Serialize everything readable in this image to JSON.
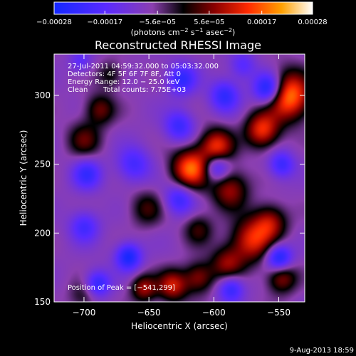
{
  "chart_data": {
    "type": "heatmap",
    "title": "Reconstructed RHESSI Image",
    "xlabel": "Heliocentric X (arcsec)",
    "ylabel": "Heliocentric Y (arcsec)",
    "xlim": [
      -723,
      -530
    ],
    "ylim": [
      150,
      330
    ],
    "x_ticks": [
      {
        "value": -700,
        "label": "−700"
      },
      {
        "value": -650,
        "label": "−650"
      },
      {
        "value": -600,
        "label": "−600"
      },
      {
        "value": -550,
        "label": "−550"
      }
    ],
    "y_ticks": [
      {
        "value": 150,
        "label": "150"
      },
      {
        "value": 200,
        "label": "200"
      },
      {
        "value": 250,
        "label": "250"
      },
      {
        "value": 300,
        "label": "300"
      }
    ],
    "colorbar": {
      "range": [
        -0.00028,
        0.00028
      ],
      "tick_values": [
        -0.00028,
        -0.00017,
        -5.6e-05,
        5.6e-05,
        0.00017,
        0.00028
      ],
      "tick_labels": [
        "−0.00028",
        "−0.00017",
        "−5.6e−05",
        "5.6e−05",
        "0.00017",
        "0.00028"
      ],
      "units_label": "(photons cm",
      "units_exp1": "−2",
      "units_mid": " s",
      "units_exp2": "−1",
      "units_mid2": " asec",
      "units_exp3": "−2",
      "units_close": ")"
    },
    "annotations": {
      "time_range": "27-Jul-2011 04:59:32.000 to 05:03:32.000",
      "detectors": "Detectors: 4F 5F 6F 7F 8F, Att 0",
      "energy_range": "Energy Range: 12.0 − 25.0 keV",
      "clean_label": "Clean",
      "total_counts": "Total counts: 7.75E+03",
      "peak_position": "Position of Peak = [−541,299]"
    },
    "sources": [
      {
        "x": -543,
        "y": 300,
        "sigma": 12,
        "amp": 1.0
      },
      {
        "x": -563,
        "y": 275,
        "sigma": 9,
        "amp": 0.75
      },
      {
        "x": -618,
        "y": 247,
        "sigma": 10,
        "amp": 0.9
      },
      {
        "x": -598,
        "y": 263,
        "sigma": 9,
        "amp": 0.75
      },
      {
        "x": -588,
        "y": 232,
        "sigma": 10,
        "amp": 0.55
      },
      {
        "x": -557,
        "y": 208,
        "sigma": 9,
        "amp": 0.55
      },
      {
        "x": -571,
        "y": 195,
        "sigma": 11,
        "amp": 0.7
      },
      {
        "x": -590,
        "y": 178,
        "sigma": 9,
        "amp": 0.5
      },
      {
        "x": -612,
        "y": 168,
        "sigma": 8,
        "amp": 0.5
      },
      {
        "x": -632,
        "y": 162,
        "sigma": 8,
        "amp": 0.65
      },
      {
        "x": -654,
        "y": 160,
        "sigma": 7,
        "amp": 0.55
      },
      {
        "x": -548,
        "y": 168,
        "sigma": 8,
        "amp": 0.55
      },
      {
        "x": -688,
        "y": 290,
        "sigma": 8,
        "amp": 0.45
      },
      {
        "x": -700,
        "y": 268,
        "sigma": 9,
        "amp": 0.4
      },
      {
        "x": -652,
        "y": 218,
        "sigma": 9,
        "amp": 0.35
      },
      {
        "x": -612,
        "y": 203,
        "sigma": 8,
        "amp": 0.35
      },
      {
        "x": -700,
        "y": 155,
        "sigma": 8,
        "amp": 0.3
      },
      {
        "x": -680,
        "y": 315,
        "sigma": 7,
        "amp": 0.3
      },
      {
        "x": -625,
        "y": 312,
        "sigma": 8,
        "amp": -0.55
      },
      {
        "x": -592,
        "y": 300,
        "sigma": 8,
        "amp": -0.55
      },
      {
        "x": -558,
        "y": 305,
        "sigma": 8,
        "amp": -0.9
      },
      {
        "x": -627,
        "y": 278,
        "sigma": 8,
        "amp": -0.5
      },
      {
        "x": -598,
        "y": 248,
        "sigma": 7,
        "amp": -0.6
      },
      {
        "x": -627,
        "y": 225,
        "sigma": 8,
        "amp": -0.5
      },
      {
        "x": -698,
        "y": 243,
        "sigma": 8,
        "amp": -0.5
      },
      {
        "x": -662,
        "y": 250,
        "sigma": 9,
        "amp": -0.45
      },
      {
        "x": -548,
        "y": 250,
        "sigma": 7,
        "amp": -0.5
      },
      {
        "x": -550,
        "y": 182,
        "sigma": 7,
        "amp": -0.75
      },
      {
        "x": -587,
        "y": 160,
        "sigma": 7,
        "amp": -0.55
      },
      {
        "x": -666,
        "y": 183,
        "sigma": 7,
        "amp": -0.7
      },
      {
        "x": -690,
        "y": 163,
        "sigma": 7,
        "amp": -0.6
      },
      {
        "x": -703,
        "y": 325,
        "sigma": 6,
        "amp": -0.3
      },
      {
        "x": -700,
        "y": 205,
        "sigma": 8,
        "amp": -0.45
      },
      {
        "x": -578,
        "y": 322,
        "sigma": 7,
        "amp": -0.35
      }
    ]
  },
  "footer": {
    "timestamp": "9-Aug-2013 18:59"
  }
}
